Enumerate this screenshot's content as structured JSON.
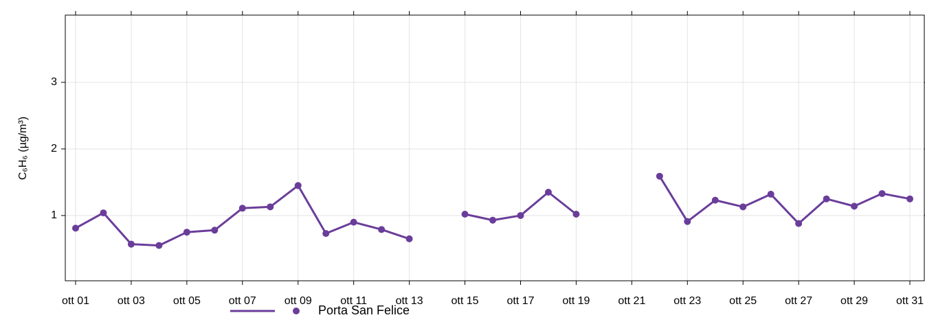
{
  "chart_data": {
    "type": "line",
    "y_label": "C₆H₆ (µg/m³)",
    "categories": [
      "ott 01",
      null,
      "ott 03",
      null,
      "ott 05",
      null,
      "ott 07",
      null,
      "ott 09",
      null,
      "ott 11",
      null,
      "ott 13",
      null,
      "ott 15",
      null,
      "ott 17",
      null,
      "ott 19",
      null,
      "ott 21",
      null,
      "ott 23",
      null,
      "ott 25",
      null,
      "ott 27",
      null,
      "ott 29",
      null,
      "ott 31"
    ],
    "series": [
      {
        "name": "Porta San Felice",
        "color": "#6a3d9a",
        "values": [
          0.81,
          1.04,
          0.57,
          0.55,
          0.75,
          0.78,
          1.11,
          1.13,
          1.45,
          0.73,
          0.9,
          0.79,
          0.65,
          null,
          1.02,
          0.93,
          1.0,
          1.35,
          1.02,
          null,
          null,
          1.59,
          0.91,
          1.23,
          1.13,
          1.32,
          0.88,
          1.25,
          1.14,
          1.33,
          1.25
        ]
      }
    ],
    "ylim": [
      0.02,
      4.01
    ],
    "yticks": [
      1,
      2,
      3
    ],
    "grid": true
  }
}
